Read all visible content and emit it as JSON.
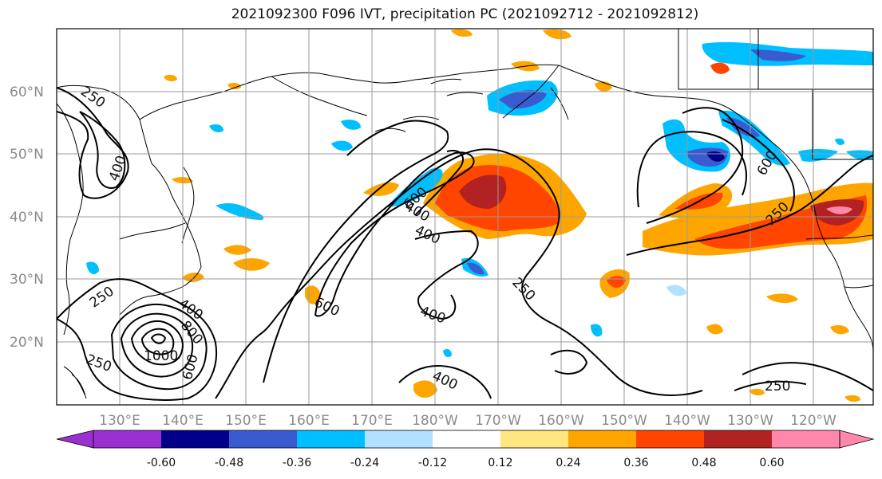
{
  "title": "2021092300 F096 IVT, precipitation PC (2021092712 - 2021092812)",
  "map": {
    "lon_labels": [
      "130°E",
      "140°E",
      "150°E",
      "160°E",
      "170°E",
      "180°W",
      "170°W",
      "160°W",
      "150°W",
      "140°W",
      "130°W",
      "120°W"
    ],
    "lat_labels": [
      "60°N",
      "50°N",
      "40°N",
      "30°N",
      "20°N"
    ],
    "contour_labels": [
      "250",
      "400",
      "250",
      "400",
      "800",
      "1000",
      "600",
      "250",
      "400",
      "600",
      "400",
      "400",
      "600",
      "250",
      "400",
      "600",
      "250",
      "250"
    ]
  },
  "colorbar": {
    "labels": [
      "-0.60",
      "-0.48",
      "-0.36",
      "-0.24",
      "-0.12",
      "0.12",
      "0.24",
      "0.36",
      "0.48",
      "0.60"
    ],
    "colors": [
      "#9b30d0",
      "#00008b",
      "#3a5bd0",
      "#00bfff",
      "#b0e2ff",
      "#ffffff",
      "#ffe680",
      "#ffa500",
      "#ff4500",
      "#b22222",
      "#ff88aa"
    ]
  }
}
